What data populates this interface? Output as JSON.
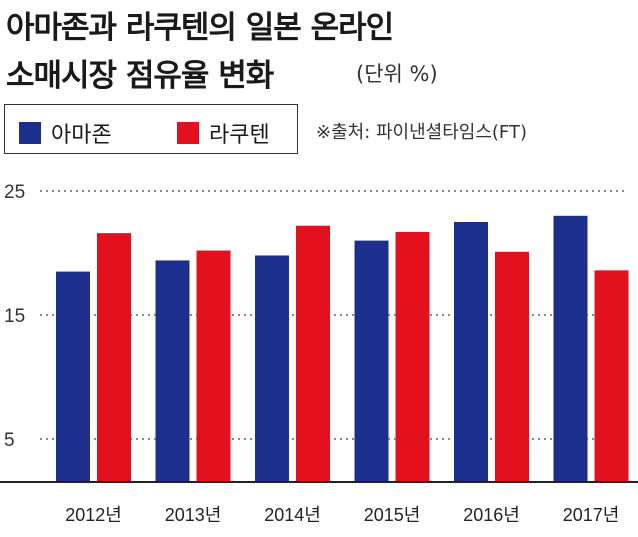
{
  "title_line1": "아마존과 라쿠텐의 일본 온라인",
  "title_line2": "소매시장 점유율 변화",
  "unit": "(단위 %)",
  "source": "※출처: 파이낸셜타임스(FT)",
  "colors": {
    "amazon": "#1d2f8c",
    "rakuten": "#e3101e"
  },
  "chart_data": {
    "type": "bar",
    "categories": [
      "2012년",
      "2013년",
      "2014년",
      "2015년",
      "2016년",
      "2017년"
    ],
    "series": [
      {
        "name": "아마존",
        "values": [
          18.5,
          19.4,
          19.8,
          21.0,
          22.5,
          23.0
        ]
      },
      {
        "name": "라쿠텐",
        "values": [
          21.6,
          20.2,
          22.2,
          21.7,
          20.1,
          18.6
        ]
      }
    ],
    "yticks": [
      "25",
      "15",
      "5"
    ],
    "ylim": [
      1,
      25
    ],
    "grid": true,
    "legend_position": "top-left"
  }
}
